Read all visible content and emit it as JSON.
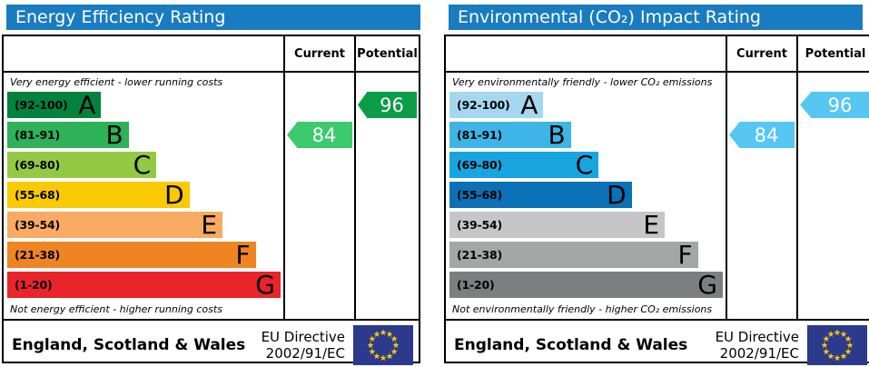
{
  "chart_data": [
    {
      "type": "bar",
      "title": "Energy Efficiency Rating",
      "categories": [
        "A (92-100)",
        "B (81-91)",
        "C (69-80)",
        "D (55-68)",
        "E (39-54)",
        "F (21-38)",
        "G (1-20)"
      ],
      "values": [
        34,
        44,
        54,
        66,
        78,
        90,
        99
      ],
      "values_note": "relative band bar lengths in % of band column width",
      "legend": [
        "Current",
        "Potential"
      ],
      "current": {
        "value": 84,
        "band": "B"
      },
      "potential": {
        "value": 96,
        "band": "A"
      }
    },
    {
      "type": "bar",
      "title": "Environmental (CO₂) Impact Rating",
      "categories": [
        "A (92-100)",
        "B (81-91)",
        "C (69-80)",
        "D (55-68)",
        "E (39-54)",
        "F (21-38)",
        "G (1-20)"
      ],
      "values": [
        34,
        44,
        54,
        66,
        78,
        90,
        99
      ],
      "values_note": "relative band bar lengths in % of band column width",
      "legend": [
        "Current",
        "Potential"
      ],
      "current": {
        "value": 84,
        "band": "B"
      },
      "potential": {
        "value": 96,
        "band": "A"
      }
    }
  ],
  "panels": [
    {
      "title": "Energy Efficiency Rating",
      "title_color": "#1a7cc0",
      "col_current": "Current",
      "col_potential": "Potential",
      "top_note": "Very energy efficient - lower running costs",
      "bottom_note": "Not energy efficient - higher running costs",
      "bands": [
        {
          "range": "(92-100)",
          "letter": "A",
          "color": "#02823d",
          "width_pct": 34
        },
        {
          "range": "(81-91)",
          "letter": "B",
          "color": "#2db257",
          "width_pct": 44
        },
        {
          "range": "(69-80)",
          "letter": "C",
          "color": "#94ca43",
          "width_pct": 54
        },
        {
          "range": "(55-68)",
          "letter": "D",
          "color": "#f9ca00",
          "width_pct": 66
        },
        {
          "range": "(39-54)",
          "letter": "E",
          "color": "#f9aa63",
          "width_pct": 78
        },
        {
          "range": "(21-38)",
          "letter": "F",
          "color": "#ee8522",
          "width_pct": 90
        },
        {
          "range": "(1-20)",
          "letter": "G",
          "color": "#e9242a",
          "width_pct": 99
        }
      ],
      "current": {
        "value": "84",
        "band_index": 1,
        "color": "#3dca6e"
      },
      "potential": {
        "value": "96",
        "band_index": 0,
        "color": "#0b9d48"
      },
      "footer": {
        "region": "England, Scotland & Wales",
        "directive_line1": "EU Directive",
        "directive_line2": "2002/91/EC",
        "flag_blue": "#2b3a8d",
        "flag_star": "#ffcc00"
      }
    },
    {
      "title": "Environmental (CO₂) Impact Rating",
      "title_color": "#1a7cc0",
      "col_current": "Current",
      "col_potential": "Potential",
      "top_note": "Very environmentally friendly - lower CO₂ emissions",
      "bottom_note": "Not environmentally friendly - higher CO₂ emissions",
      "bands": [
        {
          "range": "(92-100)",
          "letter": "A",
          "color": "#a5d8f0",
          "width_pct": 34
        },
        {
          "range": "(81-91)",
          "letter": "B",
          "color": "#3eb5e6",
          "width_pct": 44
        },
        {
          "range": "(69-80)",
          "letter": "C",
          "color": "#18a5df",
          "width_pct": 54
        },
        {
          "range": "(55-68)",
          "letter": "D",
          "color": "#0b71b7",
          "width_pct": 66
        },
        {
          "range": "(39-54)",
          "letter": "E",
          "color": "#c6c6c8",
          "width_pct": 78
        },
        {
          "range": "(21-38)",
          "letter": "F",
          "color": "#a4a5a7",
          "width_pct": 90
        },
        {
          "range": "(1-20)",
          "letter": "G",
          "color": "#7d7e80",
          "width_pct": 99
        }
      ],
      "current": {
        "value": "84",
        "band_index": 1,
        "color": "#55c7f2"
      },
      "potential": {
        "value": "96",
        "band_index": 0,
        "color": "#55c7f2"
      },
      "footer": {
        "region": "England, Scotland & Wales",
        "directive_line1": "EU Directive",
        "directive_line2": "2002/91/EC",
        "flag_blue": "#2b3a8d",
        "flag_star": "#ffcc00"
      }
    }
  ]
}
